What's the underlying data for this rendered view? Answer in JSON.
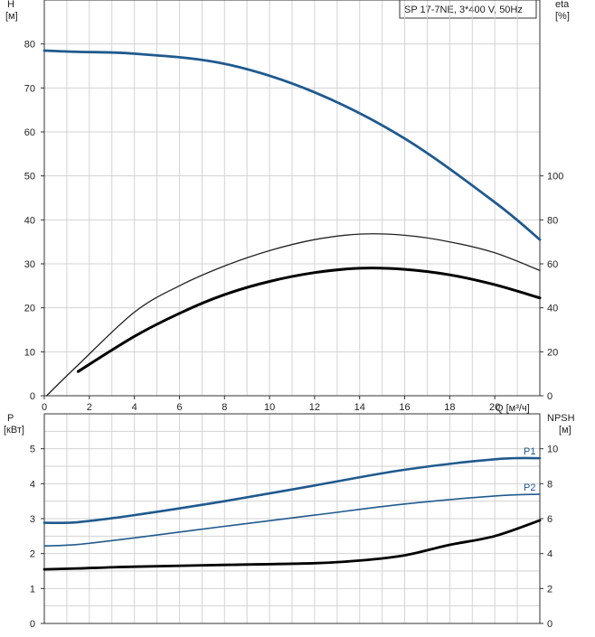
{
  "chart_data": [
    {
      "type": "line",
      "title": "SP 17-7NE, 3*400 V, 50Hz",
      "xlabel": "Q [м³/ч]",
      "ylabel_left": "H",
      "ylabel_left_unit": "[м]",
      "ylabel_right": "eta",
      "ylabel_right_unit": "[%]",
      "xlim": [
        0,
        22
      ],
      "ylim_left": [
        0,
        90
      ],
      "ylim_right": [
        0,
        180
      ],
      "x_ticks": [
        0,
        2,
        4,
        6,
        8,
        10,
        12,
        14,
        16,
        18,
        20
      ],
      "y_left_ticks": [
        0,
        10,
        20,
        30,
        40,
        50,
        60,
        70,
        80
      ],
      "y_right_ticks": [
        0,
        20,
        40,
        60,
        80,
        100
      ],
      "grid": true,
      "series": [
        {
          "axis": "left",
          "color": "#1f5a8e",
          "x": [
            0,
            1.5,
            4,
            8,
            12,
            16,
            20,
            22
          ],
          "values": [
            78.5,
            78.2,
            77.8,
            75.5,
            69,
            58.5,
            44,
            35.5
          ]
        },
        {
          "axis": "right",
          "color": "#222222",
          "x": [
            0.1,
            1.5,
            4,
            6,
            8,
            10,
            12,
            14,
            16,
            18,
            20,
            22
          ],
          "values": [
            0,
            14,
            38,
            50,
            59,
            66,
            71,
            73.5,
            73,
            70,
            65,
            57
          ]
        },
        {
          "axis": "right",
          "color": "#000000",
          "x": [
            1.5,
            4,
            6,
            8,
            10,
            12,
            14,
            16,
            18,
            20,
            22
          ],
          "values": [
            11,
            27,
            37.5,
            46,
            52,
            56,
            58,
            57.5,
            55,
            50.5,
            44.5
          ]
        }
      ]
    },
    {
      "type": "line",
      "xlim": [
        0,
        22
      ],
      "ylabel_left": "P",
      "ylabel_left_unit": "[кВт]",
      "ylabel_right": "NPSH",
      "ylabel_right_unit": "[м]",
      "ylim_left": [
        0,
        6
      ],
      "ylim_right": [
        0,
        12
      ],
      "y_left_ticks": [
        0,
        1,
        2,
        3,
        4,
        5
      ],
      "y_right_ticks": [
        0,
        2,
        4,
        6,
        8,
        10
      ],
      "grid": true,
      "series": [
        {
          "name": "P1",
          "axis": "left",
          "color": "#1f5a8e",
          "x": [
            0,
            1.5,
            4,
            8,
            12,
            16,
            20,
            22
          ],
          "values": [
            2.88,
            2.9,
            3.1,
            3.5,
            3.95,
            4.4,
            4.7,
            4.73
          ]
        },
        {
          "name": "P2",
          "axis": "left",
          "color": "#1f5a8e",
          "x": [
            0,
            1.5,
            4,
            8,
            12,
            16,
            20,
            22
          ],
          "values": [
            2.22,
            2.26,
            2.45,
            2.78,
            3.1,
            3.42,
            3.65,
            3.7
          ]
        },
        {
          "axis": "right",
          "color": "#000000",
          "x": [
            0,
            1.5,
            4,
            8,
            12,
            14,
            16,
            18,
            20,
            22
          ],
          "values": [
            3.1,
            3.15,
            3.25,
            3.35,
            3.45,
            3.6,
            3.9,
            4.5,
            5.0,
            5.9
          ]
        }
      ]
    }
  ]
}
